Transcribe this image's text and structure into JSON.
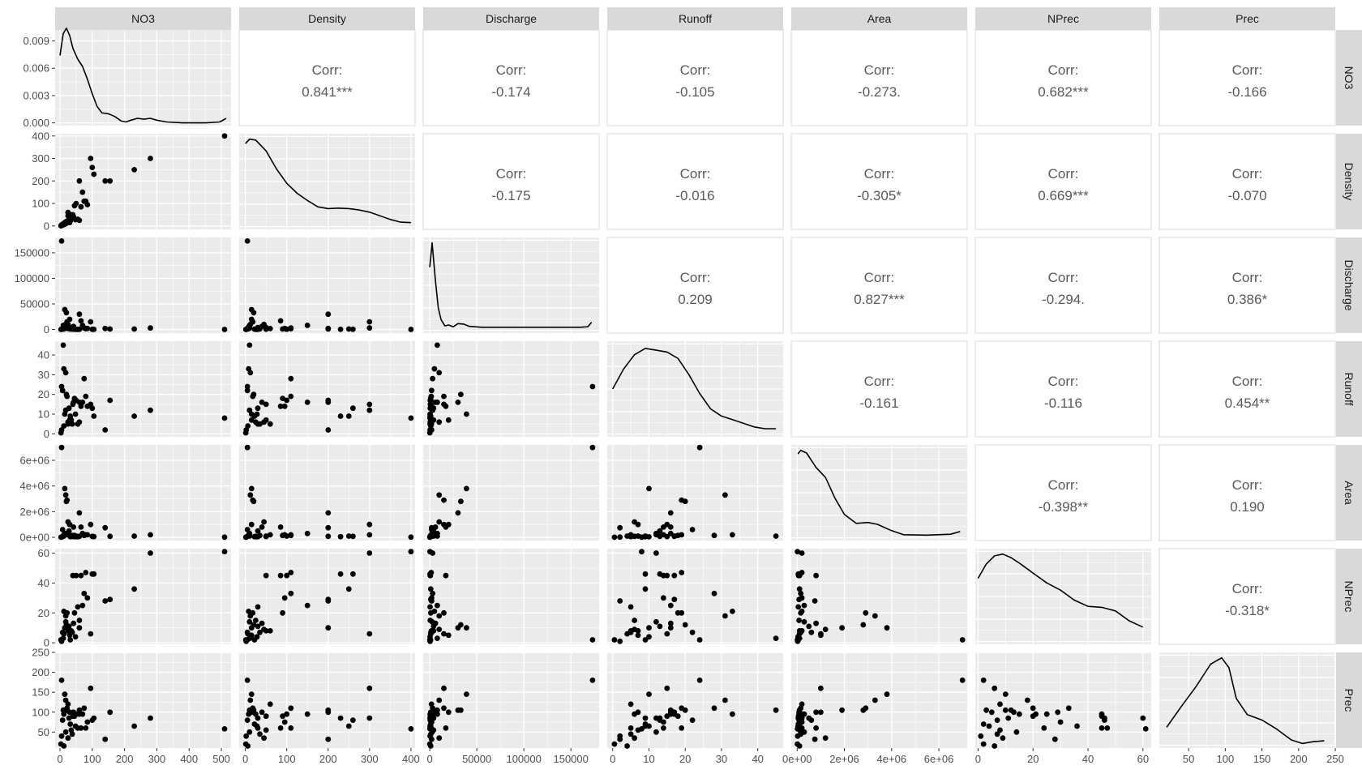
{
  "chart_data": {
    "type": "scatter-matrix",
    "variables": [
      "NO3",
      "Density",
      "Discharge",
      "Runoff",
      "Area",
      "NPrec",
      "Prec"
    ],
    "corr_prefix": "Corr:",
    "correlations": [
      {
        "row": "NO3",
        "col": "Density",
        "value": "0.841***"
      },
      {
        "row": "NO3",
        "col": "Discharge",
        "value": "-0.174"
      },
      {
        "row": "NO3",
        "col": "Runoff",
        "value": "-0.105"
      },
      {
        "row": "NO3",
        "col": "Area",
        "value": "-0.273."
      },
      {
        "row": "NO3",
        "col": "NPrec",
        "value": "0.682***"
      },
      {
        "row": "NO3",
        "col": "Prec",
        "value": "-0.166"
      },
      {
        "row": "Density",
        "col": "Discharge",
        "value": "-0.175"
      },
      {
        "row": "Density",
        "col": "Runoff",
        "value": "-0.016"
      },
      {
        "row": "Density",
        "col": "Area",
        "value": "-0.305*"
      },
      {
        "row": "Density",
        "col": "NPrec",
        "value": "0.669***"
      },
      {
        "row": "Density",
        "col": "Prec",
        "value": "-0.070"
      },
      {
        "row": "Discharge",
        "col": "Runoff",
        "value": "0.209"
      },
      {
        "row": "Discharge",
        "col": "Area",
        "value": "0.827***"
      },
      {
        "row": "Discharge",
        "col": "NPrec",
        "value": "-0.294."
      },
      {
        "row": "Discharge",
        "col": "Prec",
        "value": "0.386*"
      },
      {
        "row": "Runoff",
        "col": "Area",
        "value": "-0.161"
      },
      {
        "row": "Runoff",
        "col": "NPrec",
        "value": "-0.116"
      },
      {
        "row": "Runoff",
        "col": "Prec",
        "value": "0.454**"
      },
      {
        "row": "Area",
        "col": "NPrec",
        "value": "-0.398**"
      },
      {
        "row": "Area",
        "col": "Prec",
        "value": "0.190"
      },
      {
        "row": "NPrec",
        "col": "Prec",
        "value": "-0.318*"
      }
    ],
    "axes": {
      "NO3": {
        "range": [
          -15,
          530
        ],
        "ticks": [
          0,
          100,
          200,
          300,
          400,
          500
        ],
        "labels": [
          "0",
          "100",
          "200",
          "300",
          "400",
          "500"
        ]
      },
      "Density": {
        "range": [
          -15,
          410
        ],
        "ticks": [
          0,
          100,
          200,
          300,
          400
        ],
        "labels": [
          "0",
          "100",
          "200",
          "300",
          "400"
        ]
      },
      "Discharge": {
        "range": [
          -7000,
          180000
        ],
        "ticks": [
          0,
          50000,
          100000,
          150000
        ],
        "labels": [
          "0",
          "50000",
          "100000",
          "150000"
        ]
      },
      "Runoff": {
        "range": [
          -1.5,
          47
        ],
        "ticks": [
          0,
          10,
          20,
          30,
          40
        ],
        "labels": [
          "0",
          "10",
          "20",
          "30",
          "40"
        ]
      },
      "Area": {
        "range": [
          -250000,
          7200000
        ],
        "ticks": [
          0,
          2000000,
          4000000,
          6000000
        ],
        "labels": [
          "0e+00",
          "2e+06",
          "4e+06",
          "6e+06"
        ]
      },
      "NPrec": {
        "range": [
          -1,
          63
        ],
        "ticks": [
          0,
          20,
          40,
          60
        ],
        "labels": [
          "0",
          "20",
          "40",
          "60"
        ]
      },
      "Prec": {
        "range": [
          10,
          250
        ],
        "ticks": [
          50,
          100,
          150,
          200,
          250
        ],
        "labels": [
          "50",
          "100",
          "150",
          "200",
          "250"
        ]
      }
    },
    "density_ticks": {
      "NO3": {
        "ticks": [
          0,
          0.003,
          0.006,
          0.009
        ],
        "labels": [
          "0.000",
          "0.003",
          "0.006",
          "0.009"
        ],
        "range": [
          -0.0003,
          0.0102
        ]
      }
    },
    "density_curves": {
      "NO3": [
        [
          0,
          0.0074
        ],
        [
          10,
          0.0098
        ],
        [
          20,
          0.0104
        ],
        [
          30,
          0.0096
        ],
        [
          40,
          0.0082
        ],
        [
          55,
          0.007
        ],
        [
          70,
          0.0062
        ],
        [
          85,
          0.0048
        ],
        [
          100,
          0.0032
        ],
        [
          115,
          0.0018
        ],
        [
          130,
          0.0011
        ],
        [
          150,
          0.001
        ],
        [
          170,
          0.0007
        ],
        [
          190,
          0.0002
        ],
        [
          205,
          0.0001
        ],
        [
          220,
          0.0003
        ],
        [
          240,
          0.0005
        ],
        [
          260,
          0.0004
        ],
        [
          280,
          0.0005
        ],
        [
          300,
          0.0003
        ],
        [
          330,
          0.0001
        ],
        [
          380,
          0.0
        ],
        [
          450,
          0.0
        ],
        [
          495,
          0.0001
        ],
        [
          515,
          0.0005
        ]
      ],
      "Density": [
        [
          0,
          0.92
        ],
        [
          10,
          0.97
        ],
        [
          25,
          0.96
        ],
        [
          50,
          0.84
        ],
        [
          75,
          0.64
        ],
        [
          100,
          0.48
        ],
        [
          125,
          0.37
        ],
        [
          150,
          0.29
        ],
        [
          175,
          0.22
        ],
        [
          200,
          0.2
        ],
        [
          225,
          0.205
        ],
        [
          250,
          0.2
        ],
        [
          275,
          0.185
        ],
        [
          300,
          0.16
        ],
        [
          325,
          0.12
        ],
        [
          350,
          0.08
        ],
        [
          375,
          0.05
        ],
        [
          400,
          0.045
        ]
      ],
      "Discharge": [
        [
          0,
          0.7
        ],
        [
          2500,
          0.97
        ],
        [
          6000,
          0.55
        ],
        [
          9000,
          0.25
        ],
        [
          12000,
          0.12
        ],
        [
          16000,
          0.05
        ],
        [
          20000,
          0.06
        ],
        [
          25000,
          0.04
        ],
        [
          30000,
          0.075
        ],
        [
          36000,
          0.07
        ],
        [
          42000,
          0.045
        ],
        [
          55000,
          0.035
        ],
        [
          80000,
          0.035
        ],
        [
          120000,
          0.035
        ],
        [
          160000,
          0.035
        ],
        [
          168000,
          0.04
        ],
        [
          172000,
          0.09
        ]
      ],
      "Runoff": [
        [
          0,
          0.5
        ],
        [
          3,
          0.72
        ],
        [
          6,
          0.88
        ],
        [
          9,
          0.95
        ],
        [
          12,
          0.93
        ],
        [
          15,
          0.91
        ],
        [
          18,
          0.84
        ],
        [
          21,
          0.66
        ],
        [
          24,
          0.45
        ],
        [
          27,
          0.28
        ],
        [
          30,
          0.2
        ],
        [
          33,
          0.16
        ],
        [
          36,
          0.12
        ],
        [
          39,
          0.08
        ],
        [
          42,
          0.06
        ],
        [
          45,
          0.06
        ]
      ],
      "Area": [
        [
          30000,
          0.93
        ],
        [
          150000,
          0.97
        ],
        [
          400000,
          0.94
        ],
        [
          800000,
          0.78
        ],
        [
          1200000,
          0.67
        ],
        [
          1600000,
          0.44
        ],
        [
          2000000,
          0.26
        ],
        [
          2500000,
          0.16
        ],
        [
          3000000,
          0.17
        ],
        [
          3400000,
          0.15
        ],
        [
          4000000,
          0.08
        ],
        [
          4500000,
          0.035
        ],
        [
          5500000,
          0.03
        ],
        [
          6500000,
          0.04
        ],
        [
          6900000,
          0.07
        ]
      ],
      "NPrec": [
        [
          0,
          0.7
        ],
        [
          3,
          0.86
        ],
        [
          6,
          0.95
        ],
        [
          9,
          0.97
        ],
        [
          12,
          0.93
        ],
        [
          15,
          0.87
        ],
        [
          20,
          0.76
        ],
        [
          25,
          0.65
        ],
        [
          30,
          0.57
        ],
        [
          35,
          0.46
        ],
        [
          40,
          0.39
        ],
        [
          45,
          0.38
        ],
        [
          50,
          0.34
        ],
        [
          55,
          0.23
        ],
        [
          60,
          0.16
        ]
      ],
      "Prec": [
        [
          20,
          0.2
        ],
        [
          40,
          0.43
        ],
        [
          60,
          0.65
        ],
        [
          80,
          0.9
        ],
        [
          95,
          0.97
        ],
        [
          105,
          0.86
        ],
        [
          115,
          0.52
        ],
        [
          130,
          0.34
        ],
        [
          150,
          0.28
        ],
        [
          170,
          0.18
        ],
        [
          190,
          0.06
        ],
        [
          205,
          0.02
        ],
        [
          220,
          0.04
        ],
        [
          235,
          0.05
        ]
      ]
    },
    "observations": [
      {
        "NO3": 5,
        "Density": 5,
        "Discharge": 173000,
        "Runoff": 24,
        "Area": 7000000,
        "NPrec": 2,
        "Prec": 180
      },
      {
        "NO3": 510,
        "Density": 400,
        "Discharge": 200,
        "Runoff": 8,
        "Area": 15000,
        "NPrec": 61,
        "Prec": 58
      },
      {
        "NO3": 280,
        "Density": 300,
        "Discharge": 3000,
        "Runoff": 12,
        "Area": 200000,
        "NPrec": 60,
        "Prec": 85
      },
      {
        "NO3": 230,
        "Density": 250,
        "Discharge": 1000,
        "Runoff": 9,
        "Area": 100000,
        "NPrec": 36,
        "Prec": 65
      },
      {
        "NO3": 95,
        "Density": 300,
        "Discharge": 15000,
        "Runoff": 15,
        "Area": 1000000,
        "NPrec": 6,
        "Prec": 160
      },
      {
        "NO3": 100,
        "Density": 260,
        "Discharge": 500,
        "Runoff": 13,
        "Area": 80000,
        "NPrec": 46,
        "Prec": 80
      },
      {
        "NO3": 105,
        "Density": 230,
        "Discharge": 300,
        "Runoff": 9,
        "Area": 50000,
        "NPrec": 46,
        "Prec": 85
      },
      {
        "NO3": 140,
        "Density": 200,
        "Discharge": 2000,
        "Runoff": 2,
        "Area": 750000,
        "NPrec": 28,
        "Prec": 32
      },
      {
        "NO3": 155,
        "Density": 200,
        "Discharge": 1000,
        "Runoff": 17,
        "Area": 80000,
        "NPrec": 29,
        "Prec": 100
      },
      {
        "NO3": 60,
        "Density": 200,
        "Discharge": 30000,
        "Runoff": 16,
        "Area": 1900000,
        "NPrec": 10,
        "Prec": 105
      },
      {
        "NO3": 70,
        "Density": 150,
        "Discharge": 8000,
        "Runoff": 16,
        "Area": 300000,
        "NPrec": 25,
        "Prec": 95
      },
      {
        "NO3": 80,
        "Density": 110,
        "Discharge": 1500,
        "Runoff": 19,
        "Area": 200000,
        "NPrec": 47,
        "Prec": 60
      },
      {
        "NO3": 50,
        "Density": 100,
        "Discharge": 500,
        "Runoff": 17,
        "Area": 100000,
        "NPrec": 45,
        "Prec": 95
      },
      {
        "NO3": 75,
        "Density": 110,
        "Discharge": 3000,
        "Runoff": 28,
        "Area": 150000,
        "NPrec": 33,
        "Prec": 110
      },
      {
        "NO3": 85,
        "Density": 95,
        "Discharge": 2000,
        "Runoff": 14,
        "Area": 200000,
        "NPrec": 30,
        "Prec": 75
      },
      {
        "NO3": 45,
        "Density": 90,
        "Discharge": 1000,
        "Runoff": 18,
        "Area": 150000,
        "NPrec": 20,
        "Prec": 90
      },
      {
        "NO3": 65,
        "Density": 85,
        "Discharge": 17000,
        "Runoff": 14,
        "Area": 800000,
        "NPrec": 45,
        "Prec": 60
      },
      {
        "NO3": 35,
        "Density": 50,
        "Discharge": 4000,
        "Runoff": 7,
        "Area": 100000,
        "NPrec": 8,
        "Prec": 55
      },
      {
        "NO3": 40,
        "Density": 50,
        "Discharge": 600,
        "Runoff": 15,
        "Area": 60000,
        "NPrec": 45,
        "Prec": 90
      },
      {
        "NO3": 25,
        "Density": 45,
        "Discharge": 10000,
        "Runoff": 6,
        "Area": 1200000,
        "NPrec": 9,
        "Prec": 35
      },
      {
        "NO3": 55,
        "Density": 30,
        "Discharge": 300,
        "Runoff": 5,
        "Area": 50000,
        "NPrec": 24,
        "Prec": 60
      },
      {
        "NO3": 60,
        "Density": 25,
        "Discharge": 500,
        "Runoff": 6,
        "Area": 80000,
        "NPrec": 15,
        "Prec": 95
      },
      {
        "NO3": 20,
        "Density": 20,
        "Discharge": 33000,
        "Runoff": 20,
        "Area": 2800000,
        "NPrec": 12,
        "Prec": 105
      },
      {
        "NO3": 15,
        "Density": 15,
        "Discharge": 39000,
        "Runoff": 10,
        "Area": 3800000,
        "NPrec": 10,
        "Prec": 145
      },
      {
        "NO3": 30,
        "Density": 15,
        "Discharge": 20000,
        "Runoff": 7,
        "Area": 1000000,
        "NPrec": 5,
        "Prec": 100
      },
      {
        "NO3": 10,
        "Density": 10,
        "Discharge": 8000,
        "Runoff": 45,
        "Area": 100000,
        "NPrec": 3,
        "Prec": 105
      },
      {
        "NO3": 12,
        "Density": 8,
        "Discharge": 5000,
        "Runoff": 33,
        "Area": 200000,
        "NPrec": 21,
        "Prec": 95
      },
      {
        "NO3": 18,
        "Density": 12,
        "Discharge": 10000,
        "Runoff": 31,
        "Area": 3300000,
        "NPrec": 18,
        "Prec": 130
      },
      {
        "NO3": 8,
        "Density": 5,
        "Discharge": 2000,
        "Runoff": 22,
        "Area": 600000,
        "NPrec": 7,
        "Prec": 80
      },
      {
        "NO3": 22,
        "Density": 18,
        "Discharge": 15000,
        "Runoff": 19,
        "Area": 2900000,
        "NPrec": 20,
        "Prec": 110
      },
      {
        "NO3": 28,
        "Density": 30,
        "Discharge": 4000,
        "Runoff": 13,
        "Area": 500000,
        "NPrec": 11,
        "Prec": 85
      },
      {
        "NO3": 32,
        "Density": 22,
        "Discharge": 800,
        "Runoff": 9,
        "Area": 50000,
        "NPrec": 2,
        "Prec": 70
      },
      {
        "NO3": 5,
        "Density": 2,
        "Discharge": 300,
        "Runoff": 2,
        "Area": 20000,
        "NPrec": 1,
        "Prec": 40
      },
      {
        "NO3": 3,
        "Density": 1,
        "Discharge": 100,
        "Runoff": 0.5,
        "Area": 10000,
        "NPrec": 2,
        "Prec": 20
      },
      {
        "NO3": 12,
        "Density": 6,
        "Discharge": 1000,
        "Runoff": 4,
        "Area": 100000,
        "NPrec": 6,
        "Prec": 15
      },
      {
        "NO3": 18,
        "Density": 10,
        "Discharge": 2500,
        "Runoff": 12,
        "Area": 300000,
        "NPrec": 14,
        "Prec": 50
      },
      {
        "NO3": 38,
        "Density": 35,
        "Discharge": 1200,
        "Runoff": 5,
        "Area": 150000,
        "NPrec": 7,
        "Prec": 45
      },
      {
        "NO3": 42,
        "Density": 40,
        "Discharge": 6000,
        "Runoff": 16,
        "Area": 800000,
        "NPrec": 13,
        "Prec": 100
      },
      {
        "NO3": 48,
        "Density": 28,
        "Discharge": 300,
        "Runoff": 10,
        "Area": 40000,
        "NPrec": 4,
        "Prec": 65
      },
      {
        "NO3": 25,
        "Density": 60,
        "Discharge": 1800,
        "Runoff": 5,
        "Area": 200000,
        "NPrec": 8,
        "Prec": 120
      }
    ]
  }
}
